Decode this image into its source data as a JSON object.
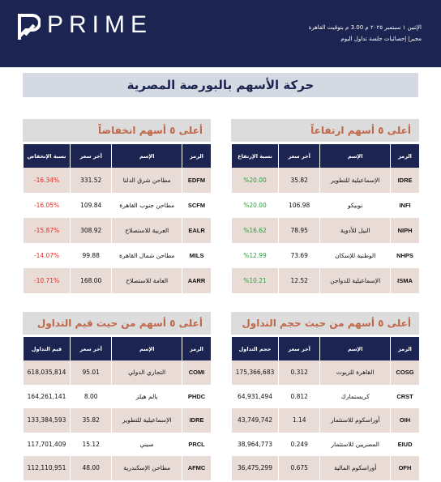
{
  "header": {
    "brand": "PRIME",
    "date_line": "الإثنين ١ سبتمبر ٢٠٢٥ م 3.00 م بتوقيت القاهرة",
    "subtitle_line": "مجير| إحصائيات جلسة تداول اليوم"
  },
  "title": "حركة الأسهم بالبورصة المصرية",
  "tables": [
    {
      "title": "أعلى ٥ أسهم ارتفاعاً",
      "value_color": "#2e9e3e",
      "headers": [
        "الرمز",
        "الإسم",
        "آخر سعر",
        "نسبة الإرتفاع"
      ],
      "rows": [
        [
          "IDRE",
          "الإسماعيلية للتطوير",
          "35.82",
          "%20.00"
        ],
        [
          "INFI",
          "نوبيكو",
          "106.98",
          "%20.00"
        ],
        [
          "NIPH",
          "النيل للأدوية",
          "78.95",
          "%16.62"
        ],
        [
          "NHPS",
          "الوطنية للإسكان",
          "73.69",
          "%12.99"
        ],
        [
          "ISMA",
          "الإسماعيلية للدواجن",
          "12.52",
          "%10.21"
        ]
      ]
    },
    {
      "title": "أعلى ٥ أسهم انخفاضاً",
      "value_color": "#e0302a",
      "headers": [
        "الرمز",
        "الإسم",
        "آخر سعر",
        "نسبة الإنخفاض"
      ],
      "rows": [
        [
          "EDFM",
          "مطاحن شرق الدلتا",
          "331.52",
          "-16.34%"
        ],
        [
          "SCFM",
          "مطاحن جنوب القاهرة",
          "109.84",
          "-16.05%"
        ],
        [
          "EALR",
          "العربية للاستصلاح",
          "308.92",
          "-15.87%"
        ],
        [
          "MILS",
          "مطاحن شمال القاهرة",
          "99.88",
          "-14.07%"
        ],
        [
          "AARR",
          "العامة للاستصلاح",
          "168.00",
          "-10.71%"
        ]
      ]
    },
    {
      "title": "أعلى ٥ أسهم من حيث حجم التداول",
      "value_color": "#111111",
      "headers": [
        "الرمز",
        "الإسم",
        "آخر سعر",
        "حجم التداول"
      ],
      "rows": [
        [
          "COSG",
          "القاهرة للزيوت",
          "0.312",
          "175,366,683"
        ],
        [
          "CRST",
          "كريستمارك",
          "0.812",
          "64,931,494"
        ],
        [
          "OIH",
          "أوراسكوم للاستثمار",
          "1.14",
          "43,749,742"
        ],
        [
          "EIUD",
          "المصريين للاستثمار",
          "0.249",
          "38,964,773"
        ],
        [
          "OFH",
          "أوراسكوم المالية",
          "0.675",
          "36,475,299"
        ]
      ]
    },
    {
      "title": "أعلى ٥ أسهم من حيث قيم التداول",
      "value_color": "#111111",
      "headers": [
        "الرمز",
        "الإسم",
        "آخر سعر",
        "قيم التداول"
      ],
      "rows": [
        [
          "COMI",
          "التجاري الدولي",
          "95.01",
          "618,035,814"
        ],
        [
          "PHDC",
          "بالم هيلز",
          "8.00",
          "164,261,141"
        ],
        [
          "IDRE",
          "الإسماعيلية للتطوير",
          "35.82",
          "133,384,593"
        ],
        [
          "PRCL",
          "صيني",
          "15.12",
          "117,701,409"
        ],
        [
          "AFMC",
          "مطاحن الإسكندرية",
          "48.00",
          "112,110,951"
        ]
      ]
    }
  ]
}
